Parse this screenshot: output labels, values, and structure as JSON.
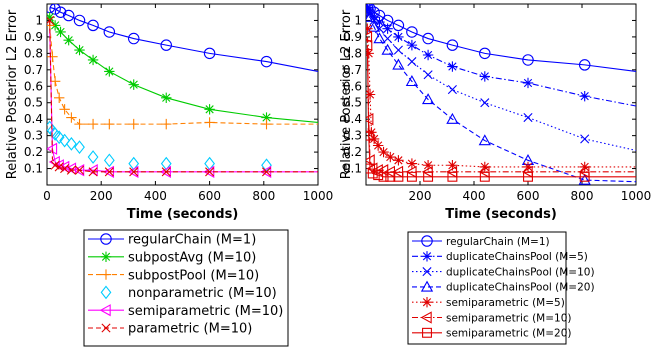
{
  "chart_data": [
    {
      "type": "line",
      "xlabel": "Time (seconds)",
      "ylabel": "Relative Posterior L2 Error",
      "xlim": [
        0,
        1000
      ],
      "ylim": [
        0,
        1.1
      ],
      "xticks": [
        0,
        200,
        400,
        600,
        800,
        1000
      ],
      "yticks": [
        0.1,
        0.2,
        0.3,
        0.4,
        0.5,
        0.6,
        0.7,
        0.8,
        0.9,
        1
      ],
      "ytick_labels": [
        "0.1",
        "0.2",
        "0.3",
        "0.4",
        "0.5",
        "0.6",
        "0.7",
        "0.8",
        "0.9",
        "1"
      ],
      "grid": false,
      "legend_position": "below",
      "series": [
        {
          "name": "regularChain (M=1)",
          "color": "#0000ff",
          "marker": "circle",
          "dash": "solid",
          "x": [
            10,
            30,
            50,
            80,
            120,
            170,
            230,
            320,
            440,
            600,
            810,
            1000
          ],
          "y": [
            1.08,
            1.07,
            1.05,
            1.03,
            1.0,
            0.97,
            0.93,
            0.89,
            0.85,
            0.8,
            0.75,
            0.69
          ],
          "marker_x": [
            10,
            30,
            50,
            80,
            120,
            170,
            230,
            320,
            440,
            600,
            810
          ]
        },
        {
          "name": "subpostAvg (M=10)",
          "color": "#00cc00",
          "marker": "star",
          "dash": "solid",
          "x": [
            10,
            30,
            50,
            80,
            120,
            170,
            230,
            320,
            440,
            600,
            810,
            1000
          ],
          "y": [
            1.02,
            0.97,
            0.93,
            0.88,
            0.82,
            0.76,
            0.69,
            0.61,
            0.53,
            0.46,
            0.41,
            0.38
          ],
          "marker_x": [
            10,
            30,
            50,
            80,
            120,
            170,
            230,
            320,
            440,
            600,
            810
          ]
        },
        {
          "name": "subpostPool (M=10)",
          "color": "#ff8000",
          "marker": "plus",
          "dash": "dashed",
          "x": [
            10,
            20,
            30,
            45,
            65,
            90,
            120,
            170,
            230,
            320,
            440,
            600,
            810,
            1000
          ],
          "y": [
            0.97,
            0.78,
            0.63,
            0.53,
            0.46,
            0.41,
            0.37,
            0.37,
            0.37,
            0.37,
            0.37,
            0.38,
            0.37,
            0.37
          ],
          "marker_x": [
            10,
            20,
            30,
            45,
            65,
            90,
            120,
            170,
            230,
            320,
            440,
            600,
            810
          ]
        },
        {
          "name": "nonparametric (M=10)",
          "color": "#00ccff",
          "marker": "diamond",
          "dash": "none",
          "x": [
            10,
            20,
            30,
            45,
            65,
            90,
            120,
            170,
            230,
            320,
            440,
            600,
            810
          ],
          "y": [
            0.35,
            0.33,
            0.31,
            0.29,
            0.27,
            0.25,
            0.23,
            0.17,
            0.15,
            0.13,
            0.13,
            0.13,
            0.12
          ]
        },
        {
          "name": "semiparametric (M=10)",
          "color": "#ff00ff",
          "marker": "triangle-left",
          "dash": "solid",
          "x": [
            10,
            20,
            30,
            45,
            65,
            90,
            120,
            170,
            230,
            320,
            440,
            600,
            810,
            1000
          ],
          "y": [
            0.95,
            0.22,
            0.14,
            0.12,
            0.11,
            0.1,
            0.09,
            0.09,
            0.08,
            0.08,
            0.08,
            0.08,
            0.08,
            0.08
          ],
          "marker_x": [
            20,
            30,
            45,
            65,
            90,
            120,
            170,
            230,
            320,
            440,
            600,
            810
          ]
        },
        {
          "name": "parametric (M=10)",
          "color": "#e00000",
          "marker": "x",
          "dash": "dashed",
          "x": [
            10,
            20,
            30,
            45,
            65,
            90,
            120,
            170,
            230,
            320,
            440,
            600,
            810,
            1000
          ],
          "y": [
            1.0,
            0.16,
            0.12,
            0.11,
            0.1,
            0.09,
            0.09,
            0.08,
            0.08,
            0.08,
            0.08,
            0.08,
            0.08,
            0.08
          ],
          "marker_x": [
            10,
            30,
            45,
            65,
            90,
            120,
            170,
            230,
            320,
            440,
            600,
            810
          ]
        }
      ]
    },
    {
      "type": "line",
      "xlabel": "Time (seconds)",
      "ylabel": "Relative Posterior L2 Error",
      "xlim": [
        0,
        1000
      ],
      "ylim": [
        0,
        1.1
      ],
      "xticks": [
        200,
        400,
        600,
        800,
        1000
      ],
      "yticks": [
        0.1,
        0.2,
        0.3,
        0.4,
        0.5,
        0.6,
        0.7,
        0.8,
        0.9,
        1
      ],
      "ytick_labels": [
        "0.1",
        "0.2",
        "0.3",
        "0.4",
        "0.5",
        "0.6",
        "0.7",
        "0.8",
        "0.9",
        "1"
      ],
      "grid": false,
      "legend_position": "below",
      "series": [
        {
          "name": "regularChain (M=1)",
          "color": "#0000ff",
          "marker": "circle",
          "dash": "solid",
          "x": [
            5,
            15,
            30,
            50,
            80,
            120,
            170,
            230,
            320,
            440,
            600,
            810,
            1000
          ],
          "y": [
            1.08,
            1.07,
            1.05,
            1.03,
            1.0,
            0.97,
            0.93,
            0.89,
            0.85,
            0.8,
            0.76,
            0.73,
            0.69
          ],
          "marker_x": [
            5,
            15,
            30,
            50,
            80,
            120,
            170,
            230,
            320,
            440,
            600,
            810
          ]
        },
        {
          "name": "duplicateChainsPool (M=5)",
          "color": "#0000ff",
          "marker": "star",
          "dash": "dashdot",
          "x": [
            5,
            15,
            30,
            50,
            80,
            120,
            170,
            230,
            320,
            440,
            600,
            810,
            1000
          ],
          "y": [
            1.08,
            1.05,
            1.02,
            0.99,
            0.95,
            0.9,
            0.85,
            0.79,
            0.72,
            0.66,
            0.62,
            0.54,
            0.48
          ],
          "marker_x": [
            5,
            15,
            30,
            50,
            80,
            120,
            170,
            230,
            320,
            440,
            600,
            810
          ]
        },
        {
          "name": "duplicateChainsPool (M=10)",
          "color": "#0000ff",
          "marker": "x",
          "dash": "dotted",
          "x": [
            5,
            15,
            30,
            50,
            80,
            120,
            170,
            230,
            320,
            440,
            600,
            810,
            1000
          ],
          "y": [
            1.07,
            1.04,
            1.0,
            0.95,
            0.89,
            0.82,
            0.75,
            0.67,
            0.58,
            0.5,
            0.41,
            0.28,
            0.21
          ],
          "marker_x": [
            5,
            15,
            30,
            50,
            80,
            120,
            170,
            230,
            320,
            440,
            600,
            810
          ]
        },
        {
          "name": "duplicateChainsPool (M=20)",
          "color": "#0000ff",
          "marker": "triangle-up",
          "dash": "dashed",
          "x": [
            5,
            15,
            30,
            50,
            80,
            120,
            170,
            230,
            320,
            440,
            600,
            810,
            1000
          ],
          "y": [
            1.06,
            1.02,
            0.96,
            0.89,
            0.82,
            0.73,
            0.63,
            0.52,
            0.4,
            0.27,
            0.15,
            0.03,
            0.02
          ],
          "marker_x": [
            5,
            15,
            30,
            50,
            80,
            120,
            170,
            230,
            320,
            440,
            600,
            810
          ]
        },
        {
          "name": "semiparametric (M=5)",
          "color": "#e00000",
          "marker": "star",
          "dash": "dotted",
          "x": [
            5,
            10,
            15,
            20,
            30,
            45,
            65,
            90,
            120,
            170,
            230,
            320,
            440,
            600,
            810,
            1000
          ],
          "y": [
            0.95,
            0.8,
            0.55,
            0.32,
            0.28,
            0.24,
            0.2,
            0.17,
            0.15,
            0.13,
            0.12,
            0.12,
            0.11,
            0.11,
            0.11,
            0.11
          ],
          "marker_x": [
            5,
            10,
            15,
            20,
            30,
            45,
            65,
            90,
            120,
            170,
            230,
            320,
            440,
            600,
            810
          ]
        },
        {
          "name": "semiparametric (M=10)",
          "color": "#e00000",
          "marker": "triangle-left",
          "dash": "dashdot",
          "x": [
            5,
            10,
            15,
            25,
            45,
            65,
            90,
            120,
            170,
            230,
            320,
            440,
            600,
            810,
            1000
          ],
          "y": [
            0.9,
            0.4,
            0.15,
            0.1,
            0.09,
            0.09,
            0.08,
            0.08,
            0.08,
            0.08,
            0.08,
            0.08,
            0.08,
            0.08,
            0.08
          ],
          "marker_x": [
            5,
            10,
            15,
            25,
            45,
            65,
            90,
            120,
            170,
            230,
            320,
            440,
            600,
            810
          ]
        },
        {
          "name": "semiparametric (M=20)",
          "color": "#e00000",
          "marker": "square",
          "dash": "solid",
          "x": [
            5,
            10,
            15,
            25,
            45,
            65,
            90,
            120,
            170,
            230,
            320,
            440,
            600,
            810,
            1000
          ],
          "y": [
            0.85,
            0.3,
            0.1,
            0.07,
            0.06,
            0.05,
            0.05,
            0.05,
            0.05,
            0.05,
            0.05,
            0.05,
            0.05,
            0.05,
            0.05
          ],
          "marker_x": [
            5,
            10,
            15,
            25,
            45,
            65,
            90,
            120,
            170,
            230,
            320,
            440,
            600,
            810
          ]
        }
      ]
    }
  ]
}
